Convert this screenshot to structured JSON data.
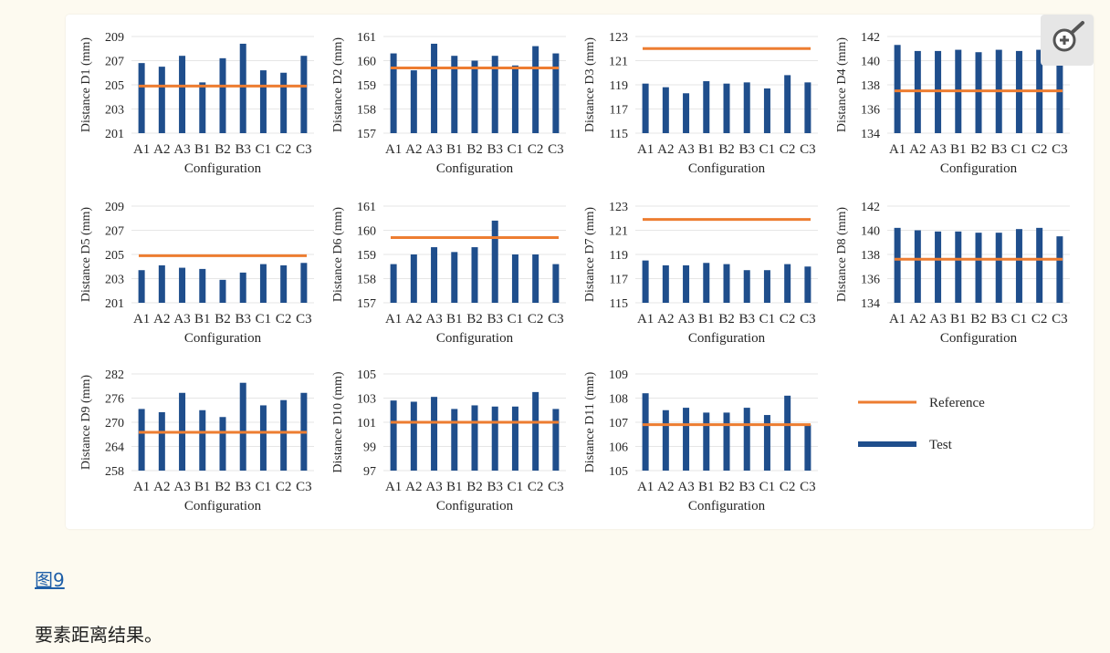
{
  "figure": {
    "link_label": "图9",
    "caption": "要素距离结果。"
  },
  "zoom_icon_name": "zoom-in-icon",
  "colors": {
    "reference": "#ed7d31",
    "test": "#1f4e8c",
    "grid": "#e6e6e6",
    "link": "#1f5fa8"
  },
  "chart_data": [
    {
      "type": "bar",
      "ylabel": "Distance D1 (mm)",
      "xlabel": "Configuration",
      "categories": [
        "A1",
        "A2",
        "A3",
        "B1",
        "B2",
        "B3",
        "C1",
        "C2",
        "C3"
      ],
      "yticks": [
        201,
        203,
        205,
        207,
        209
      ],
      "ylim": [
        201,
        209
      ],
      "series": [
        {
          "name": "Test",
          "values": [
            206.8,
            206.5,
            207.4,
            205.2,
            207.2,
            208.4,
            206.2,
            206.0,
            207.4
          ]
        }
      ],
      "reference": 204.9
    },
    {
      "type": "bar",
      "ylabel": "Distance D2 (mm)",
      "xlabel": "Configuration",
      "categories": [
        "A1",
        "A2",
        "A3",
        "B1",
        "B2",
        "B3",
        "C1",
        "C2",
        "C3"
      ],
      "yticks": [
        157,
        158,
        159,
        160,
        161
      ],
      "ylim": [
        157,
        161
      ],
      "series": [
        {
          "name": "Test",
          "values": [
            160.3,
            159.6,
            160.7,
            160.2,
            160.0,
            160.2,
            159.8,
            160.6,
            160.3
          ]
        }
      ],
      "reference": 159.7
    },
    {
      "type": "bar",
      "ylabel": "Distance D3 (mm)",
      "xlabel": "Configuration",
      "categories": [
        "A1",
        "A2",
        "A3",
        "B1",
        "B2",
        "B3",
        "C1",
        "C2",
        "C3"
      ],
      "yticks": [
        115,
        117,
        119,
        121,
        123
      ],
      "ylim": [
        115,
        123
      ],
      "series": [
        {
          "name": "Test",
          "values": [
            119.1,
            118.8,
            118.3,
            119.3,
            119.1,
            119.2,
            118.7,
            119.8,
            119.2
          ]
        }
      ],
      "reference": 122.0
    },
    {
      "type": "bar",
      "ylabel": "Distance D4 (mm)",
      "xlabel": "Configuration",
      "categories": [
        "A1",
        "A2",
        "A3",
        "B1",
        "B2",
        "B3",
        "C1",
        "C2",
        "C3"
      ],
      "yticks": [
        134,
        136,
        138,
        140,
        142
      ],
      "ylim": [
        134,
        142
      ],
      "series": [
        {
          "name": "Test",
          "values": [
            141.3,
            140.8,
            140.8,
            140.9,
            140.7,
            140.9,
            140.8,
            140.9,
            140.6
          ]
        }
      ],
      "reference": 137.5
    },
    {
      "type": "bar",
      "ylabel": "Distance D5 (mm)",
      "xlabel": "Configuration",
      "categories": [
        "A1",
        "A2",
        "A3",
        "B1",
        "B2",
        "B3",
        "C1",
        "C2",
        "C3"
      ],
      "yticks": [
        201,
        203,
        205,
        207,
        209
      ],
      "ylim": [
        201,
        209
      ],
      "series": [
        {
          "name": "Test",
          "values": [
            203.7,
            204.1,
            203.9,
            203.8,
            202.9,
            203.5,
            204.2,
            204.1,
            204.3
          ]
        }
      ],
      "reference": 204.9
    },
    {
      "type": "bar",
      "ylabel": "Distance D6 (mm)",
      "xlabel": "Configuration",
      "categories": [
        "A1",
        "A2",
        "A3",
        "B1",
        "B2",
        "B3",
        "C1",
        "C2",
        "C3"
      ],
      "yticks": [
        157,
        158,
        159,
        160,
        161
      ],
      "ylim": [
        157,
        161
      ],
      "series": [
        {
          "name": "Test",
          "values": [
            158.6,
            159.0,
            159.3,
            159.1,
            159.3,
            160.4,
            159.0,
            159.0,
            158.6
          ]
        }
      ],
      "reference": 159.7
    },
    {
      "type": "bar",
      "ylabel": "Distance D7 (mm)",
      "xlabel": "Configuration",
      "categories": [
        "A1",
        "A2",
        "A3",
        "B1",
        "B2",
        "B3",
        "C1",
        "C2",
        "C3"
      ],
      "yticks": [
        115,
        117,
        119,
        121,
        123
      ],
      "ylim": [
        115,
        123
      ],
      "series": [
        {
          "name": "Test",
          "values": [
            118.5,
            118.1,
            118.1,
            118.3,
            118.2,
            117.7,
            117.7,
            118.2,
            118.0
          ]
        }
      ],
      "reference": 121.9
    },
    {
      "type": "bar",
      "ylabel": "Distance D8 (mm)",
      "xlabel": "Configuration",
      "categories": [
        "A1",
        "A2",
        "A3",
        "B1",
        "B2",
        "B3",
        "C1",
        "C2",
        "C3"
      ],
      "yticks": [
        134,
        136,
        138,
        140,
        142
      ],
      "ylim": [
        134,
        142
      ],
      "series": [
        {
          "name": "Test",
          "values": [
            140.2,
            140.0,
            139.9,
            139.9,
            139.8,
            139.8,
            140.1,
            140.2,
            139.5
          ]
        }
      ],
      "reference": 137.6
    },
    {
      "type": "bar",
      "ylabel": "Distance D9 (mm)",
      "xlabel": "Configuration",
      "categories": [
        "A1",
        "A2",
        "A3",
        "B1",
        "B2",
        "B3",
        "C1",
        "C2",
        "C3"
      ],
      "yticks": [
        258,
        264,
        270,
        276,
        282
      ],
      "ylim": [
        258,
        282
      ],
      "series": [
        {
          "name": "Test",
          "values": [
            273.3,
            272.5,
            277.3,
            273.0,
            271.3,
            279.8,
            274.2,
            275.5,
            277.3
          ]
        }
      ],
      "reference": 267.5
    },
    {
      "type": "bar",
      "ylabel": "Distance D10 (mm)",
      "xlabel": "Configuration",
      "categories": [
        "A1",
        "A2",
        "A3",
        "B1",
        "B2",
        "B3",
        "C1",
        "C2",
        "C3"
      ],
      "yticks": [
        97,
        99,
        101,
        103,
        105
      ],
      "ylim": [
        97,
        105
      ],
      "series": [
        {
          "name": "Test",
          "values": [
            102.8,
            102.7,
            103.1,
            102.1,
            102.4,
            102.3,
            102.3,
            103.5,
            102.1
          ]
        }
      ],
      "reference": 101.0
    },
    {
      "type": "bar",
      "ylabel": "Distance D11 (mm)",
      "xlabel": "Configuration",
      "categories": [
        "A1",
        "A2",
        "A3",
        "B1",
        "B2",
        "B3",
        "C1",
        "C2",
        "C3"
      ],
      "yticks": [
        105,
        106,
        107,
        108,
        109
      ],
      "ylim": [
        105,
        109
      ],
      "series": [
        {
          "name": "Test",
          "values": [
            108.2,
            107.5,
            107.6,
            107.4,
            107.4,
            107.6,
            107.3,
            108.1,
            106.9
          ]
        }
      ],
      "reference": 106.9
    }
  ],
  "legend": [
    {
      "name": "Reference",
      "kind": "line"
    },
    {
      "name": "Test",
      "kind": "bar"
    }
  ]
}
